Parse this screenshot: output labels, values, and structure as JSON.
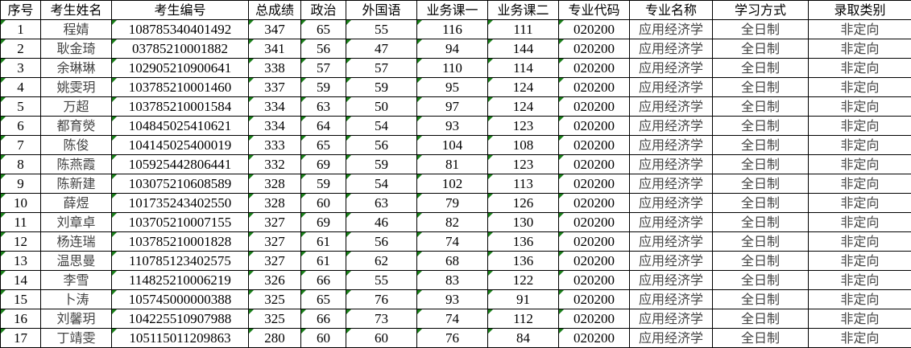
{
  "headers": [
    "序号",
    "考生姓名",
    "考生编号",
    "总成绩",
    "政治",
    "外国语",
    "业务课一",
    "业务课二",
    "专业代码",
    "专业名称",
    "学习方式",
    "录取类别"
  ],
  "colors": {
    "error_indicator": "#1a7f1a",
    "grid": "#000000"
  },
  "rows": [
    [
      "1",
      "程婧",
      "108785340401492",
      "347",
      "65",
      "55",
      "116",
      "111",
      "020200",
      "应用经济学",
      "全日制",
      "非定向"
    ],
    [
      "2",
      "耿金琦",
      "03785210001882",
      "341",
      "56",
      "47",
      "94",
      "144",
      "020200",
      "应用经济学",
      "全日制",
      "非定向"
    ],
    [
      "3",
      "余琳琳",
      "102905210900641",
      "338",
      "57",
      "57",
      "110",
      "114",
      "020200",
      "应用经济学",
      "全日制",
      "非定向"
    ],
    [
      "4",
      "姚雯玥",
      "103785210001460",
      "337",
      "59",
      "59",
      "95",
      "124",
      "020200",
      "应用经济学",
      "全日制",
      "非定向"
    ],
    [
      "5",
      "万超",
      "103785210001584",
      "334",
      "63",
      "50",
      "97",
      "124",
      "020200",
      "应用经济学",
      "全日制",
      "非定向"
    ],
    [
      "6",
      "都育熒",
      "104845025410621",
      "334",
      "64",
      "54",
      "93",
      "123",
      "020200",
      "应用经济学",
      "全日制",
      "非定向"
    ],
    [
      "7",
      "陈俊",
      "104145025400019",
      "333",
      "65",
      "56",
      "104",
      "108",
      "020200",
      "应用经济学",
      "全日制",
      "非定向"
    ],
    [
      "8",
      "陈燕霞",
      "105925442806441",
      "332",
      "69",
      "59",
      "81",
      "123",
      "020200",
      "应用经济学",
      "全日制",
      "非定向"
    ],
    [
      "9",
      "陈新建",
      "103075210608589",
      "328",
      "59",
      "54",
      "102",
      "113",
      "020200",
      "应用经济学",
      "全日制",
      "非定向"
    ],
    [
      "10",
      "薛煜",
      "101735243402550",
      "328",
      "60",
      "63",
      "79",
      "126",
      "020200",
      "应用经济学",
      "全日制",
      "非定向"
    ],
    [
      "11",
      "刘章卓",
      "103705210007155",
      "327",
      "69",
      "46",
      "82",
      "130",
      "020200",
      "应用经济学",
      "全日制",
      "非定向"
    ],
    [
      "12",
      "杨连瑞",
      "103785210001828",
      "327",
      "61",
      "56",
      "74",
      "136",
      "020200",
      "应用经济学",
      "全日制",
      "非定向"
    ],
    [
      "13",
      "温思曼",
      "110785123402575",
      "327",
      "61",
      "62",
      "68",
      "136",
      "020200",
      "应用经济学",
      "全日制",
      "非定向"
    ],
    [
      "14",
      "李雪",
      "114825210006219",
      "326",
      "66",
      "55",
      "83",
      "122",
      "020200",
      "应用经济学",
      "全日制",
      "非定向"
    ],
    [
      "15",
      "卜涛",
      "105745000000388",
      "325",
      "65",
      "76",
      "93",
      "91",
      "020200",
      "应用经济学",
      "全日制",
      "非定向"
    ],
    [
      "16",
      "刘馨玥",
      "104225510907988",
      "325",
      "66",
      "73",
      "74",
      "112",
      "020200",
      "应用经济学",
      "全日制",
      "非定向"
    ],
    [
      "17",
      "丁靖雯",
      "105115011209863",
      "280",
      "60",
      "60",
      "76",
      "84",
      "020200",
      "应用经济学",
      "全日制",
      "非定向"
    ]
  ]
}
